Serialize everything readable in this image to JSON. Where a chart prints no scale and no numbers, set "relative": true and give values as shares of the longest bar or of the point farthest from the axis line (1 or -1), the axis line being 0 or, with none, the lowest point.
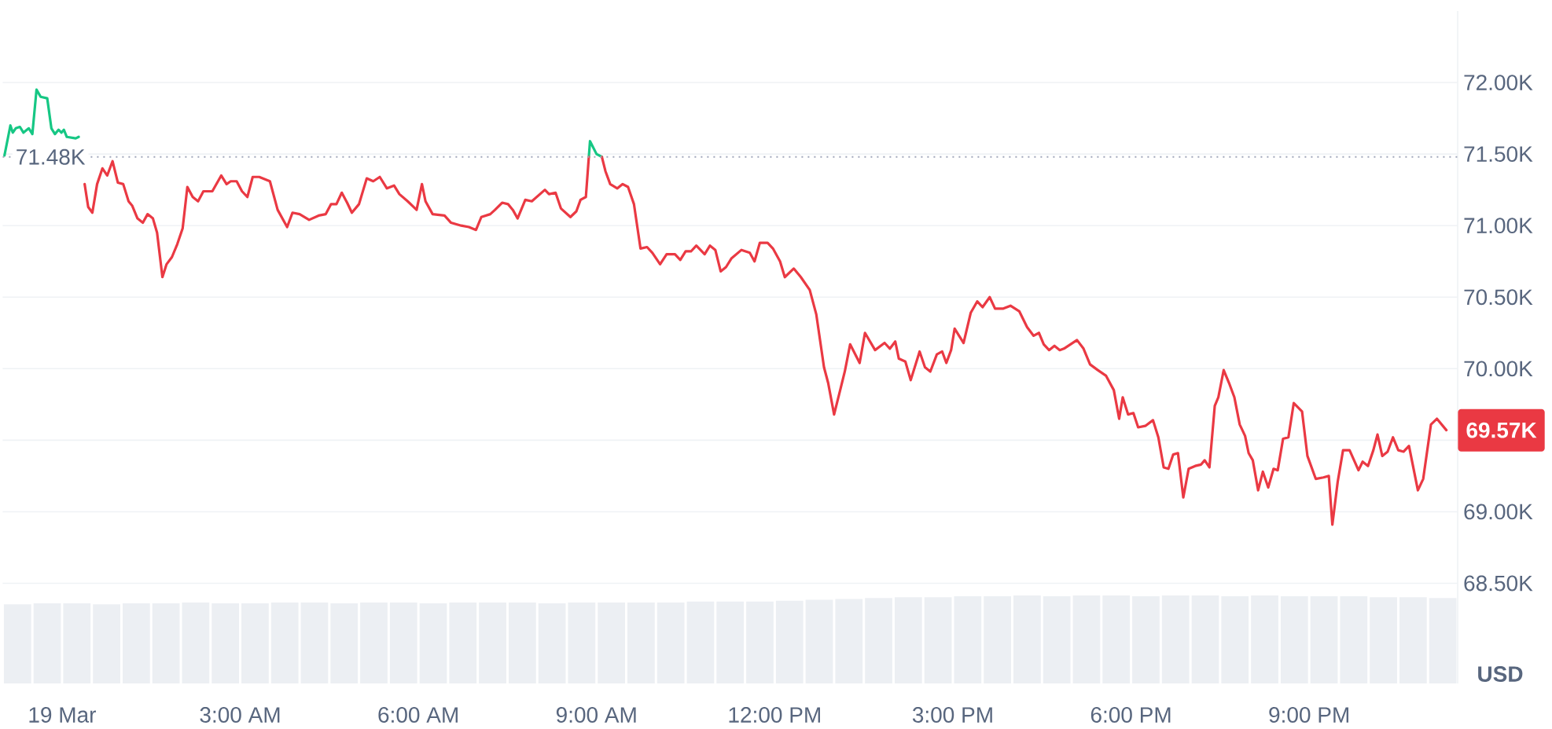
{
  "chart_data": [
    {
      "type": "line",
      "ylabel": "USD",
      "xlim": [
        -1.0,
        23.5
      ],
      "ylim": [
        67800,
        72500
      ],
      "yticks": [
        {
          "value": 68500,
          "label": "68.50K"
        },
        {
          "value": 69000,
          "label": "69.00K"
        },
        {
          "value": 69500,
          "label": null
        },
        {
          "value": 70000,
          "label": "70.00K"
        },
        {
          "value": 70500,
          "label": "70.50K"
        },
        {
          "value": 71000,
          "label": "71.00K"
        },
        {
          "value": 71500,
          "label": "71.50K"
        },
        {
          "value": 72000,
          "label": "72.00K"
        }
      ],
      "grid": "y",
      "tick_labels": "y",
      "series": [
        {
          "color": "#16c784",
          "x": [
            -0.97,
            -0.87,
            -0.83,
            -0.78,
            -0.71,
            -0.65,
            -0.56,
            -0.5,
            -0.43,
            -0.36,
            -0.25,
            -0.18,
            -0.12,
            -0.06,
            -0.01,
            0.03,
            0.08,
            0.23,
            0.28,
            4.5,
            8.87,
            8.89,
            9.0,
            9.09
          ],
          "values": [
            71490,
            71700,
            71650,
            71680,
            71690,
            71650,
            71680,
            71640,
            71950,
            71900,
            71890,
            71680,
            71640,
            71670,
            71650,
            71670,
            71620,
            71610,
            71620,
            null,
            71480,
            71590,
            71500,
            71480
          ]
        },
        {
          "color": "#ea3943",
          "x": [
            0.38,
            0.44,
            0.51,
            0.59,
            0.68,
            0.76,
            0.85,
            0.94,
            1.03,
            1.12,
            1.18,
            1.27,
            1.36,
            1.44,
            1.53,
            1.6,
            1.69,
            1.76,
            1.85,
            1.94,
            2.03,
            2.11,
            2.2,
            2.29,
            2.38,
            2.53,
            2.68,
            2.77,
            2.84,
            2.94,
            3.03,
            3.12,
            3.21,
            3.32,
            3.5,
            3.63,
            3.79,
            3.88,
            4.0,
            4.16,
            4.32,
            4.44,
            4.53,
            4.62,
            4.71,
            4.8,
            4.88,
            5.0,
            5.13,
            5.24,
            5.35,
            5.47,
            5.59,
            5.68,
            5.82,
            5.97,
            6.06,
            6.12,
            6.24,
            6.44,
            6.55,
            6.72,
            6.85,
            6.97,
            7.06,
            7.21,
            7.29,
            7.41,
            7.51,
            7.59,
            7.67,
            7.8,
            7.91,
            8.13,
            8.2,
            8.31,
            8.4,
            8.56,
            8.66,
            8.73,
            8.82,
            8.87,
            8.98,
            9.09,
            9.15,
            9.23,
            9.35,
            9.44,
            9.53,
            9.63,
            9.74,
            9.85,
            9.94,
            10.07,
            10.18,
            10.32,
            10.41,
            10.5,
            10.59,
            10.68,
            10.82,
            10.91,
            11.0,
            11.09,
            11.18,
            11.27,
            11.44,
            11.58,
            11.66,
            11.75,
            11.88,
            11.97,
            12.09,
            12.17,
            12.32,
            12.44,
            12.59,
            12.7,
            12.83,
            12.9,
            13.0,
            13.09,
            13.18,
            13.27,
            13.43,
            13.52,
            13.69,
            13.85,
            13.94,
            14.03,
            14.09,
            14.2,
            14.29,
            14.44,
            14.53,
            14.62,
            14.73,
            14.82,
            14.89,
            14.97,
            15.03,
            15.18,
            15.3,
            15.41,
            15.5,
            15.62,
            15.71,
            15.85,
            15.97,
            16.12,
            16.25,
            16.36,
            16.45,
            16.53,
            16.62,
            16.71,
            16.8,
            16.87,
            16.98,
            17.09,
            17.2,
            17.31,
            17.44,
            17.58,
            17.71,
            17.8,
            17.86,
            17.95,
            18.04,
            18.12,
            18.24,
            18.37,
            18.46,
            18.55,
            18.63,
            18.71,
            18.79,
            18.88,
            18.97,
            19.08,
            19.18,
            19.24,
            19.32,
            19.41,
            19.47,
            19.56,
            19.65,
            19.74,
            19.83,
            19.92,
            19.98,
            20.05,
            20.14,
            20.22,
            20.31,
            20.4,
            20.47,
            20.56,
            20.65,
            20.74,
            20.88,
            20.97,
            21.11,
            21.24,
            21.33,
            21.39,
            21.48,
            21.57,
            21.68,
            21.83,
            21.9,
            21.99,
            22.08,
            22.15,
            22.23,
            22.32,
            22.41,
            22.5,
            22.59,
            22.68,
            22.83,
            22.92,
            23.05,
            23.15,
            23.31
          ],
          "values": [
            71290,
            71130,
            71090,
            71290,
            71400,
            71350,
            71450,
            71300,
            71290,
            71170,
            71140,
            71050,
            71020,
            71080,
            71050,
            70950,
            70640,
            70730,
            70780,
            70870,
            70980,
            71270,
            71200,
            71170,
            71240,
            71240,
            71350,
            71290,
            71310,
            71310,
            71240,
            71200,
            71340,
            71340,
            71310,
            71110,
            70990,
            71090,
            71080,
            71040,
            71070,
            71080,
            71150,
            71150,
            71230,
            71160,
            71090,
            71150,
            71330,
            71310,
            71340,
            71260,
            71280,
            71220,
            71170,
            71110,
            71290,
            71170,
            71080,
            71070,
            71020,
            71000,
            70990,
            70970,
            71060,
            71080,
            71110,
            71160,
            71150,
            71110,
            71050,
            71180,
            71170,
            71250,
            71220,
            71230,
            71120,
            71060,
            71100,
            71180,
            71200,
            71480,
            null,
            71480,
            71380,
            71290,
            71260,
            71290,
            71270,
            71150,
            70840,
            70850,
            70810,
            70730,
            70800,
            70800,
            70760,
            70820,
            70820,
            70860,
            70800,
            70860,
            70830,
            70680,
            70710,
            70770,
            70830,
            70810,
            70750,
            70880,
            70880,
            70840,
            70750,
            70640,
            70700,
            70640,
            70550,
            70380,
            70010,
            69900,
            69680,
            69830,
            69980,
            70170,
            70040,
            70250,
            70130,
            70180,
            70140,
            70190,
            70070,
            70050,
            69920,
            70120,
            70010,
            69980,
            70100,
            70120,
            70040,
            70130,
            70280,
            70180,
            70390,
            70470,
            70430,
            70500,
            70420,
            70420,
            70440,
            70400,
            70290,
            70230,
            70250,
            70170,
            70130,
            70160,
            70130,
            70140,
            70170,
            70200,
            70140,
            70030,
            69990,
            69950,
            69850,
            69650,
            69800,
            69680,
            69690,
            69590,
            69600,
            69640,
            69520,
            69310,
            69300,
            69400,
            69410,
            69100,
            69300,
            69320,
            69330,
            69360,
            69310,
            69740,
            69800,
            69990,
            69900,
            69800,
            69610,
            69530,
            69410,
            69360,
            69150,
            69280,
            69170,
            69300,
            69290,
            69510,
            69520,
            69760,
            69700,
            69390,
            69230,
            69240,
            69250,
            68910,
            69210,
            69430,
            69430,
            69290,
            69350,
            69320,
            69430,
            69540,
            69390,
            69420,
            69520,
            69430,
            69420,
            69460,
            69150,
            69230,
            69610,
            69650,
            69570
          ]
        }
      ],
      "ref_lines": [
        {
          "axis": "y",
          "value": 71480,
          "label": "71.48K",
          "color": "#a1a7bb",
          "line_style": "dotted"
        }
      ],
      "annotations": [
        "69.57K"
      ]
    },
    {
      "type": "bar",
      "relative": true,
      "color": "#eceff3",
      "xlim": [
        -1.0,
        23.5
      ],
      "xticks": [
        {
          "value": 0,
          "label": "19 Mar"
        },
        {
          "value": 3,
          "label": "3:00 AM"
        },
        {
          "value": 6,
          "label": "6:00 AM"
        },
        {
          "value": 9,
          "label": "9:00 AM"
        },
        {
          "value": 12,
          "label": "12:00 PM"
        },
        {
          "value": 15,
          "label": "3:00 PM"
        },
        {
          "value": 18,
          "label": "6:00 PM"
        },
        {
          "value": 21,
          "label": "9:00 PM"
        }
      ],
      "x": [
        -0.75,
        -0.25,
        0.25,
        0.75,
        1.25,
        1.75,
        2.25,
        2.75,
        3.25,
        3.75,
        4.25,
        4.75,
        5.25,
        5.75,
        6.25,
        6.75,
        7.25,
        7.75,
        8.25,
        8.75,
        9.25,
        9.75,
        10.25,
        10.75,
        11.25,
        11.75,
        12.25,
        12.75,
        13.25,
        13.75,
        14.25,
        14.75,
        15.25,
        15.75,
        16.25,
        16.75,
        17.25,
        17.75,
        18.25,
        18.75,
        19.25,
        19.75,
        20.25,
        20.75,
        21.25,
        21.75,
        22.25,
        22.75,
        23.25
      ],
      "values": [
        0.9,
        0.91,
        0.91,
        0.9,
        0.91,
        0.91,
        0.92,
        0.91,
        0.91,
        0.92,
        0.92,
        0.91,
        0.92,
        0.92,
        0.91,
        0.92,
        0.92,
        0.92,
        0.91,
        0.92,
        0.92,
        0.92,
        0.92,
        0.93,
        0.93,
        0.93,
        0.94,
        0.95,
        0.96,
        0.97,
        0.98,
        0.98,
        0.99,
        0.99,
        1.0,
        0.99,
        1.0,
        1.0,
        0.99,
        1.0,
        1.0,
        0.99,
        1.0,
        0.99,
        0.99,
        0.99,
        0.98,
        0.98,
        0.97
      ]
    }
  ]
}
